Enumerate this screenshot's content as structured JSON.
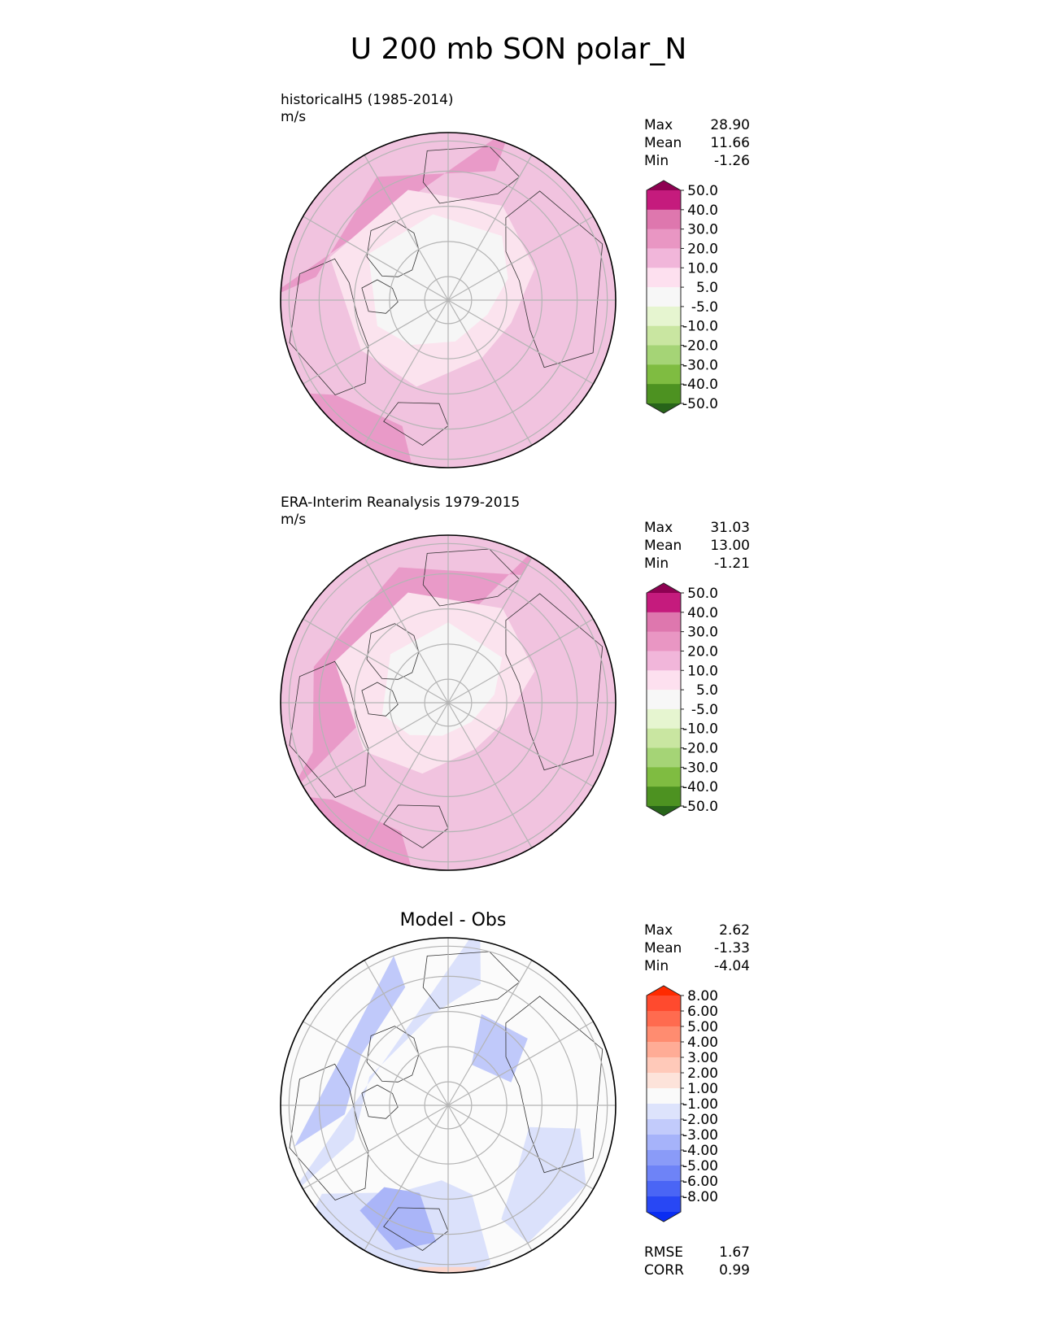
{
  "main_title": "U 200 mb SON polar_N",
  "panels": [
    {
      "name": "model",
      "label_line1": "historicalH5 (1985-2014)",
      "label_line2": "m/s",
      "center_title": "",
      "stats": [
        {
          "label": "Max",
          "value": "28.90"
        },
        {
          "label": "Mean",
          "value": "11.66"
        },
        {
          "label": "Min",
          "value": "-1.26"
        }
      ],
      "extra_stats": [],
      "colorbar": {
        "ticks": [
          "50.0",
          "40.0",
          "30.0",
          "20.0",
          "10.0",
          "5.0",
          "-5.0",
          "-10.0",
          "-20.0",
          "-30.0",
          "-40.0",
          "-50.0"
        ],
        "colors": [
          "#8e0152",
          "#c51b7d",
          "#de77ae",
          "#e996c3",
          "#f1b6da",
          "#fde0ef",
          "#f7f7f7",
          "#e6f5d0",
          "#c9e6a1",
          "#a5d476",
          "#7fbc41",
          "#4d9221",
          "#276419"
        ]
      }
    },
    {
      "name": "obs",
      "label_line1": "ERA-Interim Reanalysis 1979-2015",
      "label_line2": "m/s",
      "center_title": "",
      "stats": [
        {
          "label": "Max",
          "value": "31.03"
        },
        {
          "label": "Mean",
          "value": "13.00"
        },
        {
          "label": "Min",
          "value": "-1.21"
        }
      ],
      "extra_stats": [],
      "colorbar": {
        "ticks": [
          "50.0",
          "40.0",
          "30.0",
          "20.0",
          "10.0",
          "5.0",
          "-5.0",
          "-10.0",
          "-20.0",
          "-30.0",
          "-40.0",
          "-50.0"
        ],
        "colors": [
          "#8e0152",
          "#c51b7d",
          "#de77ae",
          "#e996c3",
          "#f1b6da",
          "#fde0ef",
          "#f7f7f7",
          "#e6f5d0",
          "#c9e6a1",
          "#a5d476",
          "#7fbc41",
          "#4d9221",
          "#276419"
        ]
      }
    },
    {
      "name": "diff",
      "label_line1": "",
      "label_line2": "",
      "center_title": "Model - Obs",
      "stats": [
        {
          "label": "Max",
          "value": "2.62"
        },
        {
          "label": "Mean",
          "value": "-1.33"
        },
        {
          "label": "Min",
          "value": "-4.04"
        }
      ],
      "extra_stats": [
        {
          "label": "RMSE",
          "value": "1.67"
        },
        {
          "label": "CORR",
          "value": "0.99"
        }
      ],
      "colorbar": {
        "ticks": [
          "8.00",
          "6.00",
          "5.00",
          "4.00",
          "3.00",
          "2.00",
          "1.00",
          "-1.00",
          "-2.00",
          "-3.00",
          "-4.00",
          "-5.00",
          "-6.00",
          "-8.00"
        ],
        "colors": [
          "#ff2a00",
          "#ff4a2e",
          "#ff6b4f",
          "#ff8c70",
          "#ffac96",
          "#ffc9b9",
          "#fde3da",
          "#fafafa",
          "#dde3fc",
          "#c2cbfb",
          "#a6b3fa",
          "#8a9bf8",
          "#6e83f7",
          "#4a65f5",
          "#2847f4",
          "#0a2df2"
        ]
      }
    }
  ],
  "chart_data": [
    {
      "type": "heatmap",
      "title": "historicalH5 (1985-2014)",
      "units": "m/s",
      "projection": "north polar stereographic",
      "levels": [
        -50,
        -40,
        -30,
        -20,
        -10,
        -5,
        5,
        10,
        20,
        30,
        40,
        50
      ],
      "stats": {
        "max": 28.9,
        "mean": 11.66,
        "min": -1.26
      }
    },
    {
      "type": "heatmap",
      "title": "ERA-Interim Reanalysis 1979-2015",
      "units": "m/s",
      "projection": "north polar stereographic",
      "levels": [
        -50,
        -40,
        -30,
        -20,
        -10,
        -5,
        5,
        10,
        20,
        30,
        40,
        50
      ],
      "stats": {
        "max": 31.03,
        "mean": 13.0,
        "min": -1.21
      }
    },
    {
      "type": "heatmap",
      "title": "Model - Obs",
      "projection": "north polar stereographic",
      "levels": [
        -8,
        -6,
        -5,
        -4,
        -3,
        -2,
        -1,
        1,
        2,
        3,
        4,
        5,
        6,
        8
      ],
      "stats": {
        "max": 2.62,
        "mean": -1.33,
        "min": -4.04,
        "rmse": 1.67,
        "corr": 0.99
      }
    }
  ]
}
